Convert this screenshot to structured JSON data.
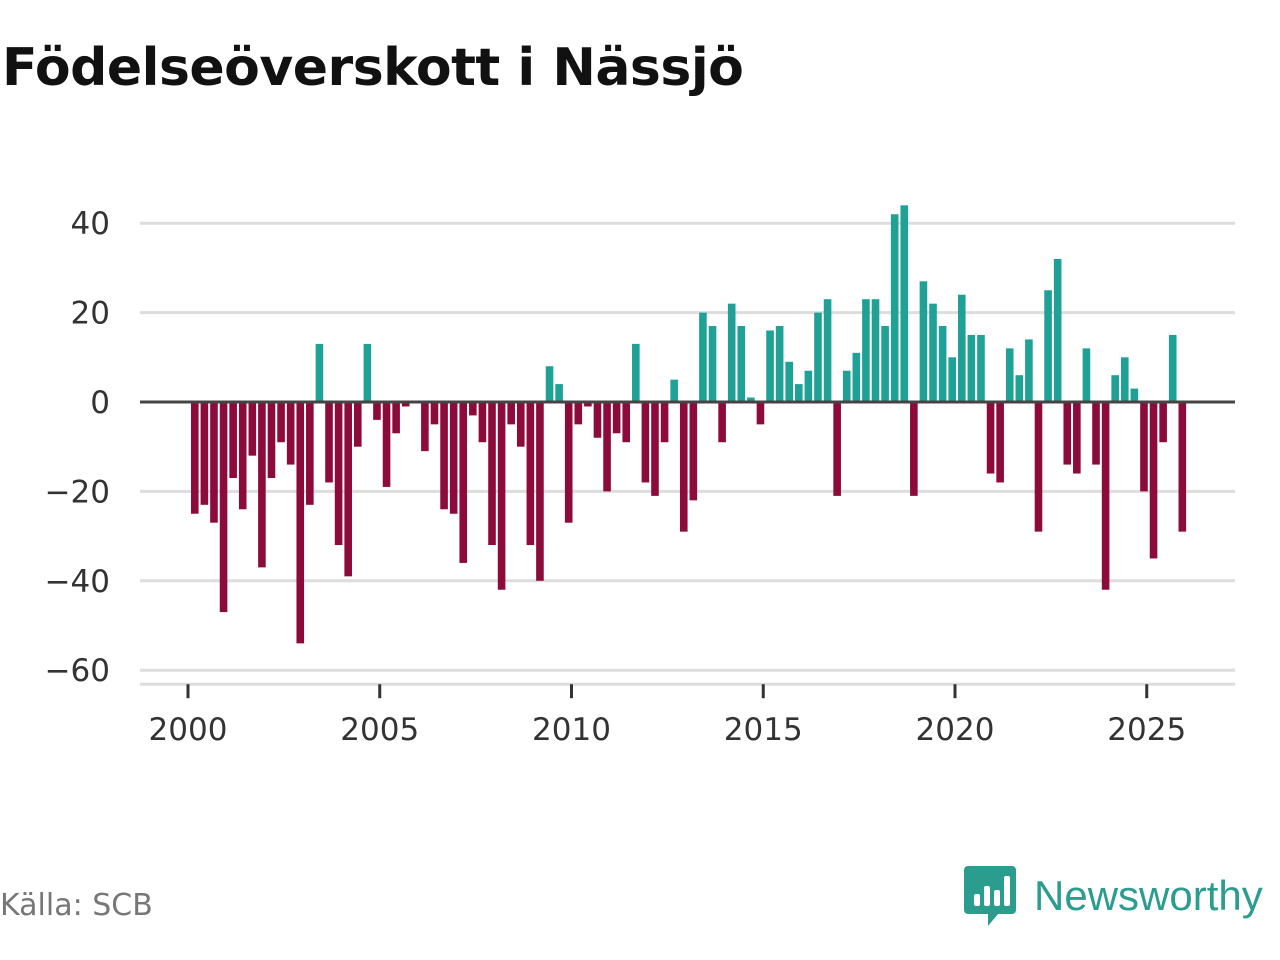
{
  "colors": {
    "positive": "#1fa196",
    "negative": "#8c0b3a",
    "grid": "#dddddd",
    "zero_line": "#444444",
    "brand": "#2a9d8f"
  },
  "footer": {
    "source": "Källa: SCB",
    "brand_name": "Newsworthy",
    "brand_icon": "bar-chart-speech-icon"
  },
  "chart_data": {
    "type": "bar",
    "title": "Födelseöverskott i Nässjö",
    "xlabel": "",
    "ylabel": "",
    "ylim": [
      -60,
      45
    ],
    "yticks": [
      -60,
      -40,
      -20,
      0,
      20,
      40
    ],
    "ytick_labels": [
      "−60",
      "−40",
      "−20",
      "0",
      "20",
      "40"
    ],
    "xticks": [
      2000,
      2005,
      2010,
      2015,
      2020,
      2025
    ],
    "xtick_labels": [
      "2000",
      "2005",
      "2010",
      "2015",
      "2020",
      "2025"
    ],
    "x_start": 2000,
    "period": "quarterly",
    "grid": true,
    "values": [
      -25,
      -23,
      -27,
      -47,
      -17,
      -24,
      -12,
      -37,
      -17,
      -9,
      -14,
      -54,
      -23,
      13,
      -18,
      -32,
      -39,
      -10,
      13,
      -4,
      -19,
      -7,
      -1,
      0,
      -11,
      -5,
      -24,
      -25,
      -36,
      -3,
      -9,
      -32,
      -42,
      -5,
      -10,
      -32,
      -40,
      8,
      4,
      -27,
      -5,
      -1,
      -8,
      -20,
      -7,
      -9,
      13,
      -18,
      -21,
      -9,
      5,
      -29,
      -22,
      20,
      17,
      -9,
      22,
      17,
      1,
      -5,
      16,
      17,
      9,
      4,
      7,
      20,
      23,
      -21,
      7,
      11,
      23,
      23,
      17,
      42,
      44,
      -21,
      27,
      22,
      17,
      10,
      24,
      15,
      15,
      -16,
      -18,
      12,
      6,
      14,
      -29,
      25,
      32,
      -14,
      -16,
      12,
      -14,
      -42,
      6,
      10,
      3,
      -20,
      -35,
      -9,
      15,
      -29
    ]
  }
}
